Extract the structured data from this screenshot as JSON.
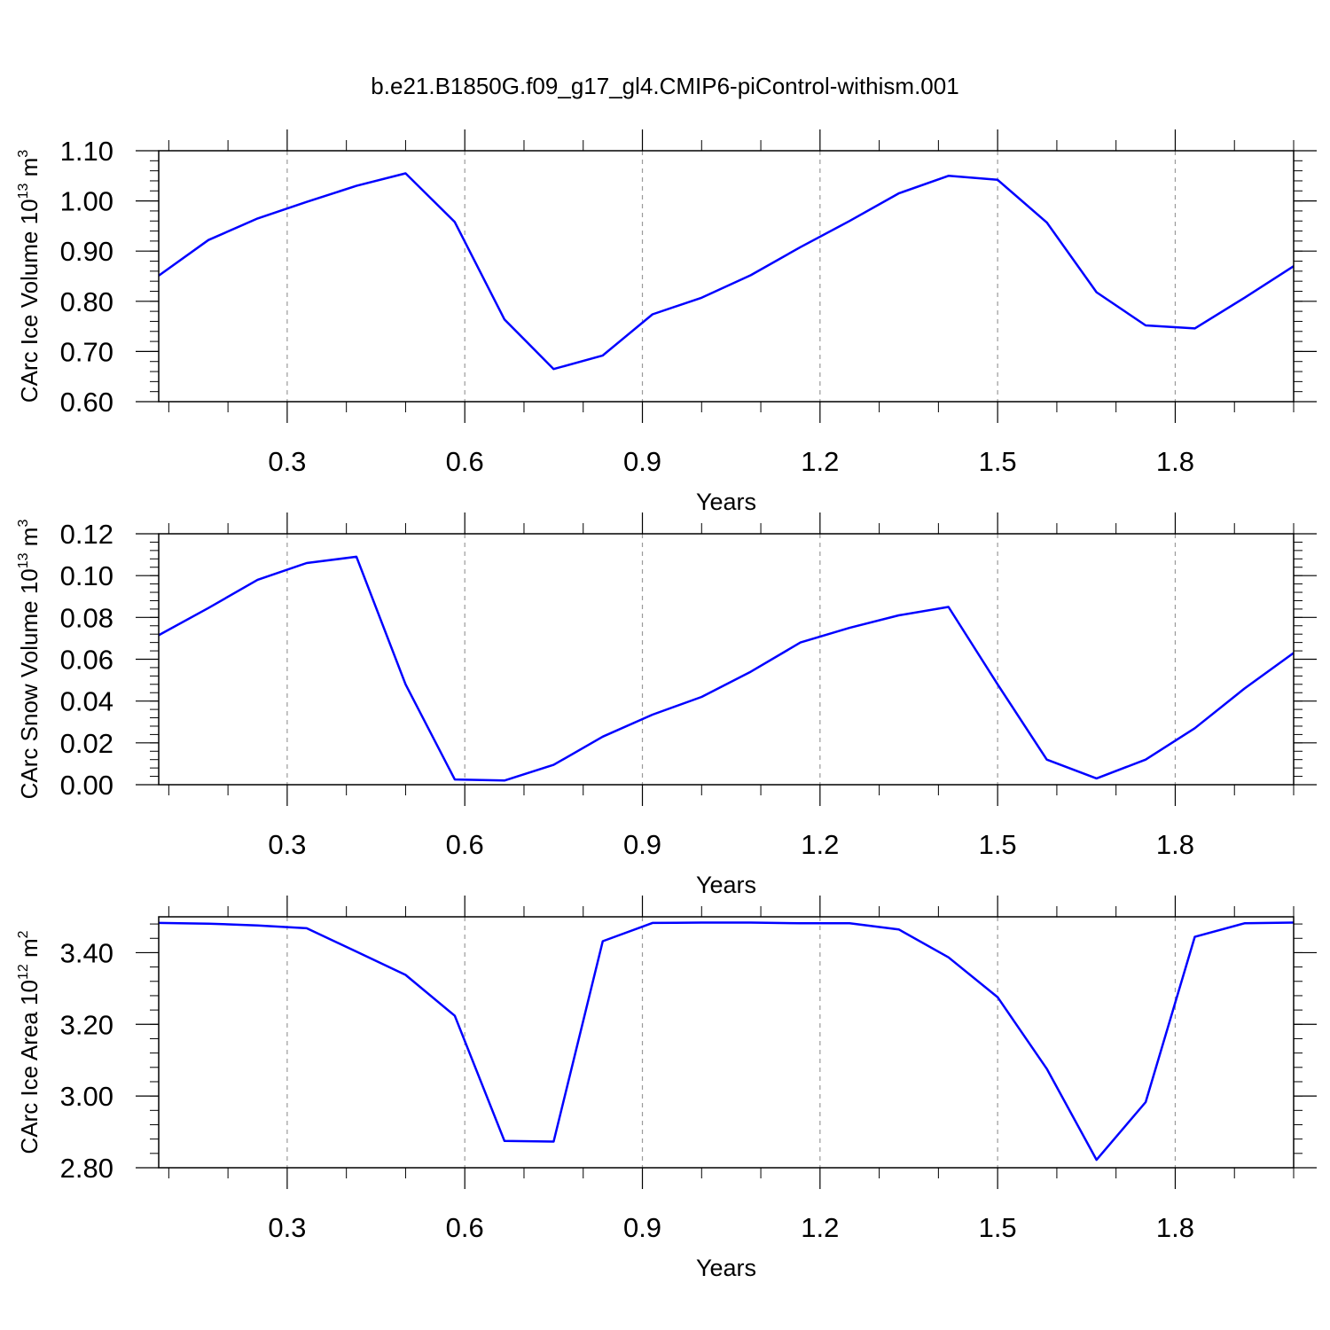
{
  "figure": {
    "title": "b.e21.B1850G.f09_g17_gl4.CMIP6-piControl-withism.001"
  },
  "chart_data": [
    {
      "type": "line",
      "xlabel": "Years",
      "ylabel": {
        "text": "CArc Ice Volume 10",
        "sup": "13",
        "unit": " m",
        "unit_sup": "3"
      },
      "xlim": [
        0.083,
        2.0
      ],
      "ylim": [
        0.6,
        1.1
      ],
      "xticks": [
        "0.3",
        "0.6",
        "0.9",
        "1.2",
        "1.5",
        "1.8"
      ],
      "yticks": [
        "0.60",
        "0.70",
        "0.80",
        "0.90",
        "1.00",
        "1.10"
      ],
      "grid_x": "dashed",
      "series": [
        {
          "color": "#0000ff",
          "x": [
            0.083,
            0.167,
            0.25,
            0.333,
            0.417,
            0.5,
            0.583,
            0.667,
            0.75,
            0.833,
            0.917,
            1.0,
            1.083,
            1.167,
            1.25,
            1.333,
            1.417,
            1.5,
            1.583,
            1.667,
            1.75,
            1.833,
            1.917,
            2.0
          ],
          "y": [
            0.851,
            0.922,
            0.965,
            0.998,
            1.03,
            1.055,
            0.958,
            0.764,
            0.665,
            0.692,
            0.774,
            0.807,
            0.852,
            0.908,
            0.96,
            1.015,
            1.05,
            1.042,
            0.957,
            0.818,
            0.752,
            0.746,
            0.807,
            0.87
          ]
        }
      ]
    },
    {
      "type": "line",
      "xlabel": "Years",
      "ylabel": {
        "text": "CArc Snow Volume 10",
        "sup": "13",
        "unit": " m",
        "unit_sup": "3"
      },
      "xlim": [
        0.083,
        2.0
      ],
      "ylim": [
        0.0,
        0.12
      ],
      "xticks": [
        "0.3",
        "0.6",
        "0.9",
        "1.2",
        "1.5",
        "1.8"
      ],
      "yticks": [
        "0.00",
        "0.02",
        "0.04",
        "0.06",
        "0.08",
        "0.10",
        "0.12"
      ],
      "grid_x": "dashed",
      "series": [
        {
          "color": "#0000ff",
          "x": [
            0.083,
            0.167,
            0.25,
            0.333,
            0.417,
            0.5,
            0.583,
            0.667,
            0.75,
            0.833,
            0.917,
            1.0,
            1.083,
            1.167,
            1.25,
            1.333,
            1.417,
            1.5,
            1.583,
            1.667,
            1.75,
            1.833,
            1.917,
            2.0
          ],
          "y": [
            0.0715,
            0.0845,
            0.098,
            0.106,
            0.109,
            0.048,
            0.0025,
            0.002,
            0.0095,
            0.023,
            0.0335,
            0.042,
            0.054,
            0.068,
            0.075,
            0.081,
            0.085,
            0.048,
            0.012,
            0.003,
            0.012,
            0.027,
            0.046,
            0.063
          ]
        }
      ]
    },
    {
      "type": "line",
      "xlabel": "Years",
      "ylabel": {
        "text": "CArc Ice Area 10",
        "sup": "12",
        "unit": " m",
        "unit_sup": "2"
      },
      "xlim": [
        0.083,
        2.0
      ],
      "ylim": [
        2.8,
        3.5
      ],
      "xticks": [
        "0.3",
        "0.6",
        "0.9",
        "1.2",
        "1.5",
        "1.8"
      ],
      "yticks": [
        "2.80",
        "3.00",
        "3.20",
        "3.40"
      ],
      "grid_x": "dashed",
      "series": [
        {
          "color": "#0000ff",
          "x": [
            0.083,
            0.167,
            0.25,
            0.333,
            0.417,
            0.5,
            0.583,
            0.667,
            0.75,
            0.833,
            0.917,
            1.0,
            1.083,
            1.167,
            1.25,
            1.333,
            1.417,
            1.5,
            1.583,
            1.667,
            1.75,
            1.833,
            1.917,
            2.0
          ],
          "y": [
            3.483,
            3.481,
            3.476,
            3.468,
            3.403,
            3.338,
            3.224,
            2.875,
            2.873,
            3.432,
            3.483,
            3.484,
            3.484,
            3.482,
            3.482,
            3.465,
            3.387,
            3.276,
            3.076,
            2.822,
            2.983,
            3.444,
            3.482,
            3.484
          ]
        }
      ]
    }
  ]
}
